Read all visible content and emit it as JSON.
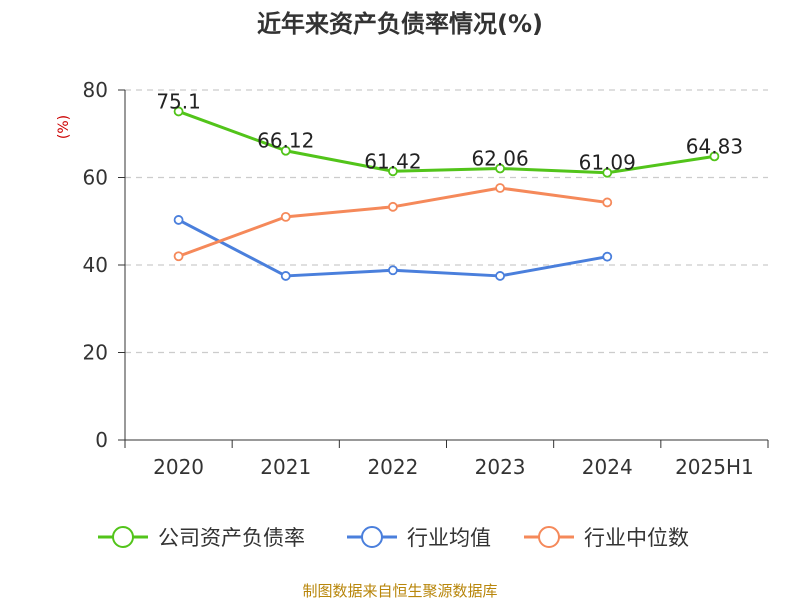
{
  "chart_data": {
    "type": "line",
    "title": "近年来资产负债率情况(%)",
    "ylabel": "(%)",
    "categories": [
      "2020",
      "2021",
      "2022",
      "2023",
      "2024",
      "2025H1"
    ],
    "ylim": [
      0,
      80
    ],
    "yticks": [
      "0",
      "20",
      "40",
      "60",
      "80"
    ],
    "grid": true,
    "legend_position": "bottom",
    "series": [
      {
        "name": "公司资产负债率",
        "color": "#52c41a",
        "values": [
          75.1,
          66.12,
          61.42,
          62.06,
          61.09,
          64.83
        ],
        "labels": [
          "75.1",
          "66.12",
          "61.42",
          "62.06",
          "61.09",
          "64.83"
        ]
      },
      {
        "name": "行业均值",
        "color": "#4a7fdc",
        "values": [
          50.3,
          37.5,
          38.8,
          37.5,
          41.9,
          null
        ]
      },
      {
        "name": "行业中位数",
        "color": "#f5895a",
        "values": [
          42.0,
          51.0,
          53.3,
          57.6,
          54.3,
          null
        ]
      }
    ]
  },
  "source": "制图数据来自恒生聚源数据库"
}
